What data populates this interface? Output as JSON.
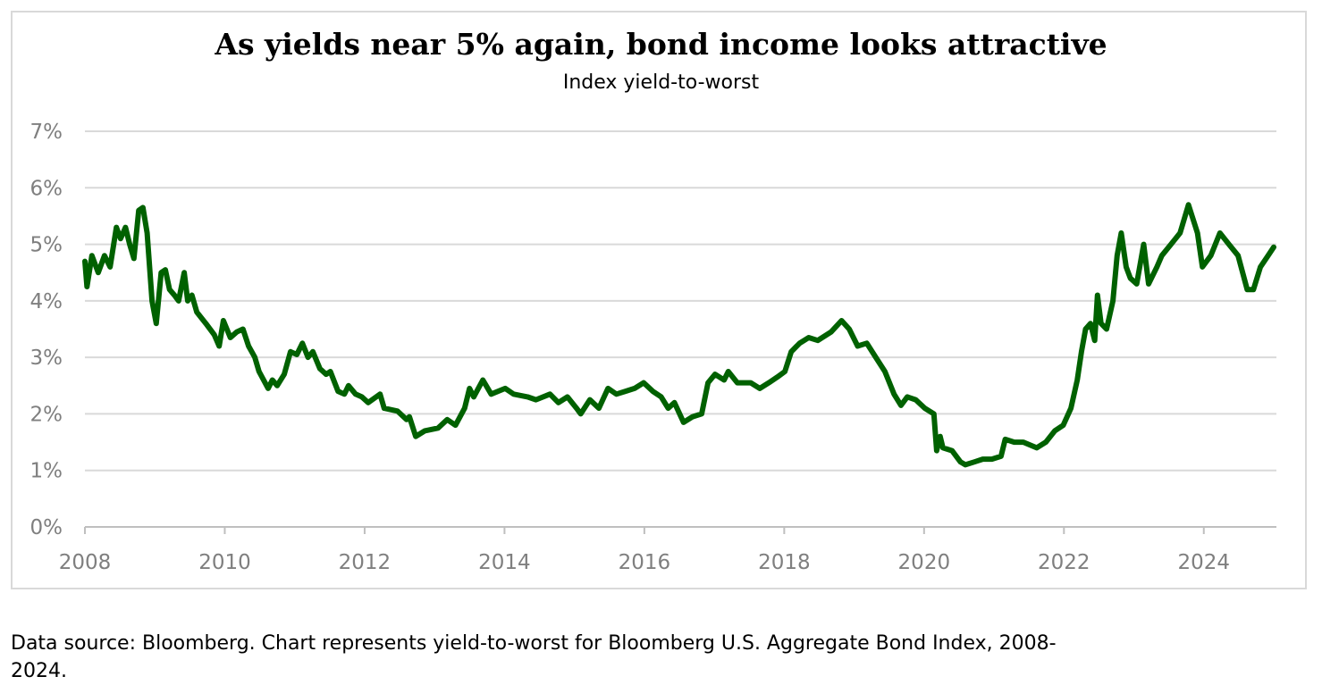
{
  "chart_data": {
    "type": "line",
    "title": "As yields near 5% again, bond income looks attractive",
    "subtitle": "Index yield-to-worst",
    "xlabel": "",
    "ylabel": "",
    "xlim": [
      2008,
      2025
    ],
    "ylim": [
      0,
      7
    ],
    "x_ticks": [
      "2008",
      "2010",
      "2012",
      "2014",
      "2016",
      "2018",
      "2020",
      "2022",
      "2024"
    ],
    "y_ticks": [
      "0%",
      "1%",
      "2%",
      "3%",
      "4%",
      "5%",
      "6%",
      "7%"
    ],
    "grid": "horizontal",
    "legend": "none",
    "line_color": "#006100",
    "series": [
      {
        "points": [
          [
            2008.0,
            4.7
          ],
          [
            2008.03,
            4.25
          ],
          [
            2008.1,
            4.8
          ],
          [
            2008.19,
            4.5
          ],
          [
            2008.28,
            4.8
          ],
          [
            2008.36,
            4.6
          ],
          [
            2008.45,
            5.3
          ],
          [
            2008.51,
            5.1
          ],
          [
            2008.58,
            5.3
          ],
          [
            2008.64,
            5.0
          ],
          [
            2008.7,
            4.75
          ],
          [
            2008.77,
            5.6
          ],
          [
            2008.83,
            5.65
          ],
          [
            2008.89,
            5.2
          ],
          [
            2008.96,
            4.0
          ],
          [
            2009.02,
            3.6
          ],
          [
            2009.09,
            4.5
          ],
          [
            2009.15,
            4.55
          ],
          [
            2009.21,
            4.2
          ],
          [
            2009.28,
            4.1
          ],
          [
            2009.34,
            4.0
          ],
          [
            2009.42,
            4.5
          ],
          [
            2009.47,
            4.0
          ],
          [
            2009.53,
            4.1
          ],
          [
            2009.6,
            3.8
          ],
          [
            2009.73,
            3.6
          ],
          [
            2009.85,
            3.4
          ],
          [
            2009.92,
            3.2
          ],
          [
            2009.98,
            3.65
          ],
          [
            2010.08,
            3.35
          ],
          [
            2010.17,
            3.45
          ],
          [
            2010.26,
            3.5
          ],
          [
            2010.34,
            3.2
          ],
          [
            2010.43,
            3.0
          ],
          [
            2010.49,
            2.75
          ],
          [
            2010.62,
            2.45
          ],
          [
            2010.68,
            2.6
          ],
          [
            2010.75,
            2.5
          ],
          [
            2010.85,
            2.7
          ],
          [
            2010.94,
            3.1
          ],
          [
            2011.03,
            3.05
          ],
          [
            2011.11,
            3.25
          ],
          [
            2011.19,
            3.0
          ],
          [
            2011.26,
            3.1
          ],
          [
            2011.36,
            2.8
          ],
          [
            2011.45,
            2.7
          ],
          [
            2011.51,
            2.75
          ],
          [
            2011.62,
            2.4
          ],
          [
            2011.71,
            2.35
          ],
          [
            2011.77,
            2.5
          ],
          [
            2011.87,
            2.35
          ],
          [
            2011.96,
            2.3
          ],
          [
            2012.05,
            2.2
          ],
          [
            2012.22,
            2.35
          ],
          [
            2012.28,
            2.1
          ],
          [
            2012.47,
            2.05
          ],
          [
            2012.6,
            1.9
          ],
          [
            2012.64,
            1.95
          ],
          [
            2012.73,
            1.6
          ],
          [
            2012.86,
            1.7
          ],
          [
            2013.05,
            1.75
          ],
          [
            2013.18,
            1.9
          ],
          [
            2013.3,
            1.8
          ],
          [
            2013.43,
            2.1
          ],
          [
            2013.5,
            2.45
          ],
          [
            2013.56,
            2.3
          ],
          [
            2013.69,
            2.6
          ],
          [
            2013.81,
            2.35
          ],
          [
            2014.01,
            2.45
          ],
          [
            2014.13,
            2.35
          ],
          [
            2014.33,
            2.3
          ],
          [
            2014.45,
            2.25
          ],
          [
            2014.65,
            2.35
          ],
          [
            2014.77,
            2.2
          ],
          [
            2014.9,
            2.3
          ],
          [
            2015.03,
            2.1
          ],
          [
            2015.09,
            2.0
          ],
          [
            2015.22,
            2.25
          ],
          [
            2015.35,
            2.1
          ],
          [
            2015.48,
            2.45
          ],
          [
            2015.6,
            2.35
          ],
          [
            2015.73,
            2.4
          ],
          [
            2015.86,
            2.45
          ],
          [
            2015.99,
            2.55
          ],
          [
            2016.12,
            2.4
          ],
          [
            2016.24,
            2.3
          ],
          [
            2016.34,
            2.1
          ],
          [
            2016.43,
            2.2
          ],
          [
            2016.56,
            1.85
          ],
          [
            2016.69,
            1.95
          ],
          [
            2016.82,
            2.0
          ],
          [
            2016.91,
            2.55
          ],
          [
            2017.01,
            2.7
          ],
          [
            2017.14,
            2.6
          ],
          [
            2017.2,
            2.75
          ],
          [
            2017.33,
            2.55
          ],
          [
            2017.52,
            2.55
          ],
          [
            2017.65,
            2.45
          ],
          [
            2017.78,
            2.55
          ],
          [
            2017.9,
            2.65
          ],
          [
            2018.01,
            2.75
          ],
          [
            2018.1,
            3.1
          ],
          [
            2018.22,
            3.25
          ],
          [
            2018.35,
            3.35
          ],
          [
            2018.48,
            3.3
          ],
          [
            2018.67,
            3.45
          ],
          [
            2018.82,
            3.65
          ],
          [
            2018.93,
            3.5
          ],
          [
            2019.05,
            3.2
          ],
          [
            2019.18,
            3.25
          ],
          [
            2019.31,
            3.0
          ],
          [
            2019.44,
            2.75
          ],
          [
            2019.57,
            2.35
          ],
          [
            2019.67,
            2.15
          ],
          [
            2019.76,
            2.3
          ],
          [
            2019.88,
            2.25
          ],
          [
            2020.01,
            2.1
          ],
          [
            2020.14,
            2.0
          ],
          [
            2020.18,
            1.35
          ],
          [
            2020.23,
            1.6
          ],
          [
            2020.27,
            1.4
          ],
          [
            2020.4,
            1.35
          ],
          [
            2020.52,
            1.15
          ],
          [
            2020.59,
            1.1
          ],
          [
            2020.72,
            1.15
          ],
          [
            2020.84,
            1.2
          ],
          [
            2020.97,
            1.2
          ],
          [
            2021.1,
            1.25
          ],
          [
            2021.16,
            1.55
          ],
          [
            2021.29,
            1.5
          ],
          [
            2021.42,
            1.5
          ],
          [
            2021.61,
            1.4
          ],
          [
            2021.74,
            1.5
          ],
          [
            2021.87,
            1.7
          ],
          [
            2021.99,
            1.8
          ],
          [
            2022.1,
            2.1
          ],
          [
            2022.19,
            2.6
          ],
          [
            2022.25,
            3.1
          ],
          [
            2022.31,
            3.5
          ],
          [
            2022.38,
            3.6
          ],
          [
            2022.44,
            3.3
          ],
          [
            2022.48,
            4.1
          ],
          [
            2022.53,
            3.6
          ],
          [
            2022.61,
            3.5
          ],
          [
            2022.7,
            4.0
          ],
          [
            2022.76,
            4.8
          ],
          [
            2022.82,
            5.2
          ],
          [
            2022.89,
            4.6
          ],
          [
            2022.95,
            4.4
          ],
          [
            2023.04,
            4.3
          ],
          [
            2023.14,
            5.0
          ],
          [
            2023.21,
            4.3
          ],
          [
            2023.33,
            4.6
          ],
          [
            2023.4,
            4.8
          ],
          [
            2023.53,
            5.0
          ],
          [
            2023.66,
            5.2
          ],
          [
            2023.78,
            5.7
          ],
          [
            2023.91,
            5.2
          ],
          [
            2023.98,
            4.6
          ],
          [
            2024.1,
            4.8
          ],
          [
            2024.23,
            5.2
          ],
          [
            2024.36,
            5.0
          ],
          [
            2024.49,
            4.8
          ],
          [
            2024.62,
            4.2
          ],
          [
            2024.71,
            4.2
          ],
          [
            2024.81,
            4.6
          ],
          [
            2024.92,
            4.8
          ],
          [
            2025.0,
            4.95
          ]
        ]
      }
    ]
  },
  "footer": {
    "source_line1": "Data source: Bloomberg. Chart represents yield-to-worst for Bloomberg U.S. Aggregate Bond Index, 2008-",
    "source_line2": "2024."
  }
}
